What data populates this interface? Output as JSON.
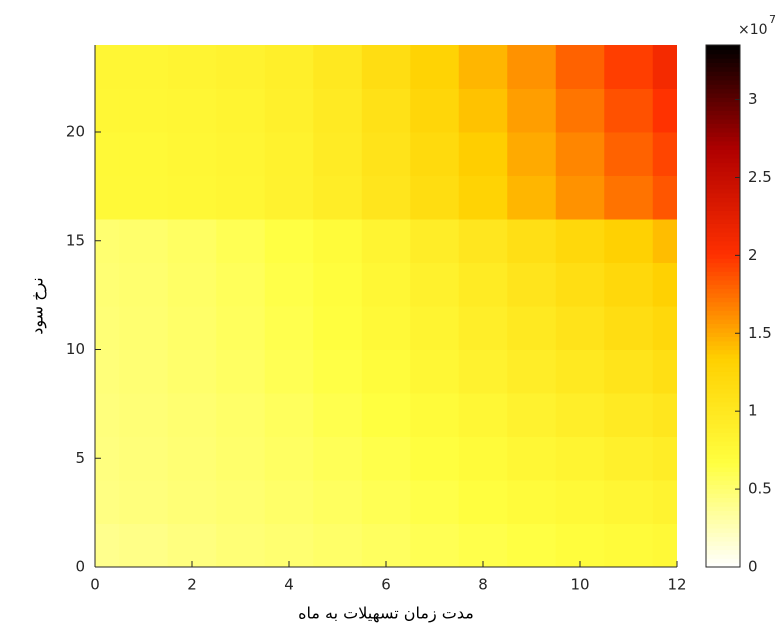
{
  "chart_data": {
    "type": "heatmap",
    "x_label": "مدت زمان تسهیلات به ماه",
    "y_label": "نرخ سود",
    "x": [
      0,
      1,
      2,
      3,
      4,
      5,
      6,
      7,
      8,
      9,
      10,
      11,
      12
    ],
    "y": [
      1,
      3,
      5,
      7,
      9,
      11,
      13,
      15,
      17,
      19,
      21,
      23
    ],
    "cell_height": 2,
    "values": [
      [
        0.4,
        0.42,
        0.45,
        0.48,
        0.5,
        0.53,
        0.56,
        0.6,
        0.63,
        0.66,
        0.7,
        0.73,
        0.76
      ],
      [
        0.44,
        0.46,
        0.48,
        0.5,
        0.53,
        0.56,
        0.6,
        0.64,
        0.68,
        0.72,
        0.76,
        0.8,
        0.84
      ],
      [
        0.45,
        0.47,
        0.49,
        0.52,
        0.55,
        0.59,
        0.63,
        0.68,
        0.73,
        0.78,
        0.83,
        0.88,
        0.93
      ],
      [
        0.46,
        0.48,
        0.5,
        0.53,
        0.57,
        0.62,
        0.67,
        0.73,
        0.79,
        0.85,
        0.91,
        0.97,
        1.03
      ],
      [
        0.47,
        0.49,
        0.52,
        0.55,
        0.6,
        0.65,
        0.71,
        0.78,
        0.85,
        0.92,
        0.99,
        1.06,
        1.13
      ],
      [
        0.48,
        0.5,
        0.53,
        0.57,
        0.62,
        0.68,
        0.75,
        0.83,
        0.91,
        0.99,
        1.07,
        1.15,
        1.23
      ],
      [
        0.49,
        0.51,
        0.54,
        0.58,
        0.64,
        0.7,
        0.78,
        0.87,
        0.96,
        1.05,
        1.14,
        1.23,
        1.32
      ],
      [
        0.5,
        0.52,
        0.55,
        0.6,
        0.66,
        0.73,
        0.82,
        0.92,
        1.02,
        1.12,
        1.22,
        1.32,
        1.42
      ],
      [
        0.75,
        0.75,
        0.77,
        0.8,
        0.85,
        0.93,
        1.04,
        1.16,
        1.3,
        1.45,
        1.6,
        1.73,
        1.85
      ],
      [
        0.76,
        0.76,
        0.78,
        0.81,
        0.86,
        0.95,
        1.07,
        1.2,
        1.35,
        1.5,
        1.65,
        1.8,
        1.92
      ],
      [
        0.78,
        0.78,
        0.8,
        0.83,
        0.88,
        0.97,
        1.1,
        1.25,
        1.4,
        1.55,
        1.72,
        1.87,
        2.0
      ],
      [
        0.8,
        0.8,
        0.82,
        0.85,
        0.9,
        1.0,
        1.15,
        1.3,
        1.45,
        1.6,
        1.8,
        1.95,
        2.1
      ]
    ],
    "xlim": [
      0,
      12
    ],
    "ylim": [
      0,
      24
    ],
    "xticks": [
      0,
      2,
      4,
      6,
      8,
      10,
      12
    ],
    "yticks": [
      0,
      5,
      10,
      15,
      20
    ],
    "colormap": [
      "#ffffff",
      "#ffff40",
      "#ffd000",
      "#ff3000",
      "#b00000",
      "#000000"
    ],
    "clim": [
      0,
      3.35
    ],
    "colorbar_ticks": [
      0,
      0.5,
      1,
      1.5,
      2,
      2.5,
      3
    ],
    "colorbar_scale": {
      "base": "×10",
      "exponent": "7"
    }
  }
}
